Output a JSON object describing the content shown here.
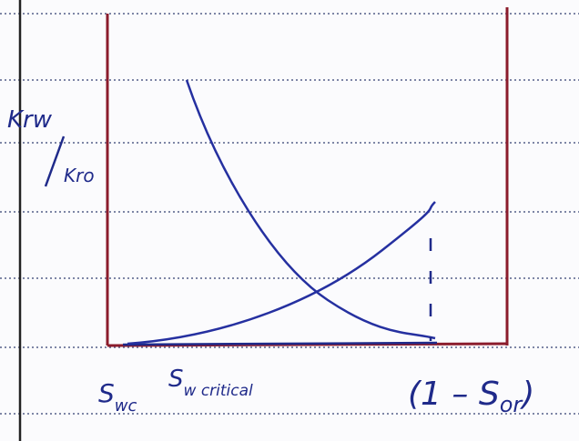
{
  "y_label": {
    "numerator": "Krw",
    "denominator": "Kro"
  },
  "x_labels": [
    {
      "text": "S",
      "sub": "wc"
    },
    {
      "text": "S",
      "sub": "w critical"
    },
    {
      "text": "(1 – S",
      "sub": "or",
      "end": ")"
    }
  ]
}
